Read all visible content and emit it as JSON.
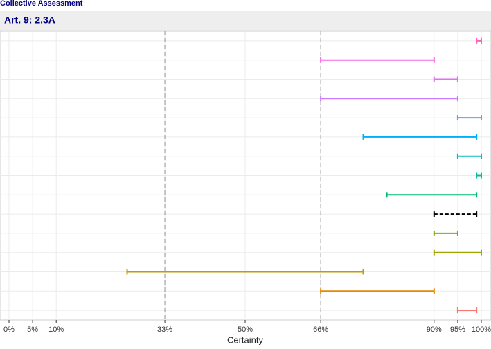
{
  "chart_data": {
    "type": "range",
    "header": "Collective Assessment",
    "title": "Art. 9: 2.3A",
    "xlabel": "Certainty",
    "xlim": [
      0,
      100
    ],
    "xticks": [
      {
        "value": 0,
        "label": "0%"
      },
      {
        "value": 5,
        "label": "5%"
      },
      {
        "value": 10,
        "label": "10%"
      },
      {
        "value": 33,
        "label": "33%"
      },
      {
        "value": 50,
        "label": "50%"
      },
      {
        "value": 66,
        "label": "66%"
      },
      {
        "value": 90,
        "label": "90%"
      },
      {
        "value": 95,
        "label": "95%"
      },
      {
        "value": 100,
        "label": "100%"
      }
    ],
    "reference_lines": [
      33,
      66
    ],
    "grid": true,
    "series": [
      {
        "color": "#FF62BC",
        "values": [
          99,
          100
        ]
      },
      {
        "color": "#F564E3",
        "values": [
          66,
          90
        ]
      },
      {
        "color": "#E76BF3",
        "values": [
          90,
          95
        ]
      },
      {
        "color": "#C77CFF",
        "values": [
          66,
          95
        ]
      },
      {
        "color": "#619CFF",
        "values": [
          95,
          100
        ]
      },
      {
        "color": "#00B0F6",
        "values": [
          75,
          99
        ]
      },
      {
        "color": "#00BFC4",
        "values": [
          95,
          100
        ]
      },
      {
        "color": "#00C19A",
        "values": [
          99,
          100
        ]
      },
      {
        "color": "#00BA73",
        "values": [
          80,
          99
        ]
      },
      {
        "color": "#000000",
        "values": [
          90,
          99
        ],
        "dashed": true
      },
      {
        "color": "#7CAE00",
        "values": [
          90,
          95
        ]
      },
      {
        "color": "#A3A500",
        "values": [
          90,
          100
        ]
      },
      {
        "color": "#C49A00",
        "values": [
          25,
          75
        ]
      },
      {
        "color": "#E58700",
        "values": [
          66,
          90
        ]
      },
      {
        "color": "#F8766D",
        "values": [
          95,
          99
        ]
      }
    ]
  }
}
